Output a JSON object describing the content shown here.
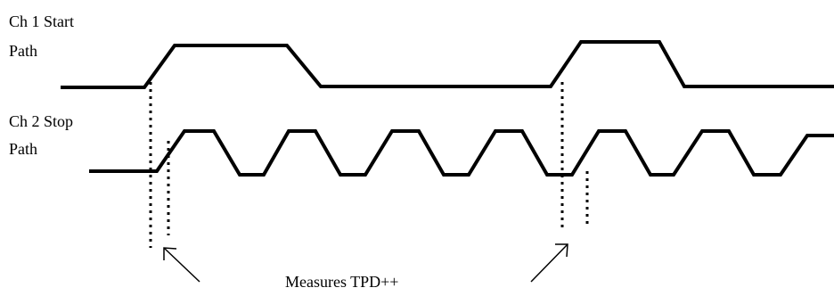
{
  "labels": {
    "ch1_line1": "Ch 1 Start",
    "ch1_line2": "Path",
    "ch2_line1": "Ch 2 Stop",
    "ch2_line2": "Path",
    "caption": "Measures TPD++"
  },
  "colors": {
    "stroke": "#000000",
    "background": "#ffffff"
  }
}
